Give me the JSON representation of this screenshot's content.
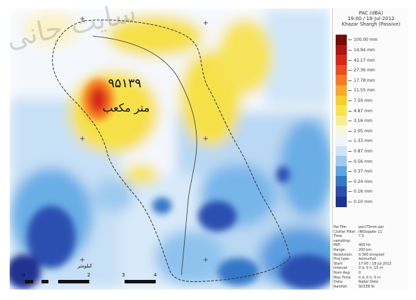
{
  "watermark_text": "سایت جانی",
  "map": {
    "annotation_value": "۹۵۱۳۹",
    "annotation_unit": "متر مکعب",
    "scale_bar": {
      "ticks": [
        "0",
        "2",
        "3",
        "4"
      ],
      "unit_label": "کیلومتر"
    }
  },
  "legend": {
    "title_line1": "PAC (dBA)",
    "title_line2": "19:00 / 18-Jul-2012",
    "title_line3": "Khazar Shargh (Passive)",
    "bins": [
      {
        "label": "100.00 mm",
        "color": "#7a0a0a"
      },
      {
        "label": "14.94 mm",
        "color": "#b01512"
      },
      {
        "label": "42.17 mm",
        "color": "#d8261b"
      },
      {
        "label": "27.36 mm",
        "color": "#ee4b20"
      },
      {
        "label": "17.78 mm",
        "color": "#f57a23"
      },
      {
        "label": "11.55 mm",
        "color": "#f8a927"
      },
      {
        "label": "7.50 mm",
        "color": "#f7cf2d"
      },
      {
        "label": "4.87 mm",
        "color": "#f8e34a"
      },
      {
        "label": "3.16 mm",
        "color": "#f7ef8d"
      },
      {
        "label": "2.05 mm",
        "color": "#fbf6d8"
      },
      {
        "label": "1.33 mm",
        "color": "#eef4fb"
      },
      {
        "label": "0.87 mm",
        "color": "#cfe4f7"
      },
      {
        "label": "0.56 mm",
        "color": "#9fcaf0"
      },
      {
        "label": "0.37 mm",
        "color": "#5aa6e6"
      },
      {
        "label": "0.24 mm",
        "color": "#3478c8"
      },
      {
        "label": "0.16 mm",
        "color": "#2a4fb0"
      },
      {
        "label": "0.10 mm",
        "color": "#20318f"
      }
    ]
  },
  "info": [
    {
      "k": "Ppi File:",
      "v": "pac/75mm.ppi"
    },
    {
      "k": "Clutter Filter:",
      "v": "IIRDoppler 11"
    },
    {
      "k": "Time sampling:",
      "v": "7.5"
    },
    {
      "k": "PRF:",
      "v": "400 Hz"
    },
    {
      "k": "Range:",
      "v": "200 km"
    },
    {
      "k": "Resolution:",
      "v": "0.300 km/pixel"
    },
    {
      "k": "Proj type:",
      "v": "Azimuthal"
    },
    {
      "k": "Start:",
      "v": "17:00 / 18 Jul 2012"
    },
    {
      "k": "Interval:",
      "v": "0 d, 0 h, 15 m"
    },
    {
      "k": "Num Avg:",
      "v": "0"
    },
    {
      "k": "Max Time:",
      "v": "0 d, 0 h, 0 m"
    },
    {
      "k": "Data:",
      "v": "Radar Data"
    },
    {
      "k": "Rainfall:",
      "v": "SD1E8 St"
    }
  ],
  "colors": {
    "border": "#666666",
    "boundary": "#333333"
  }
}
